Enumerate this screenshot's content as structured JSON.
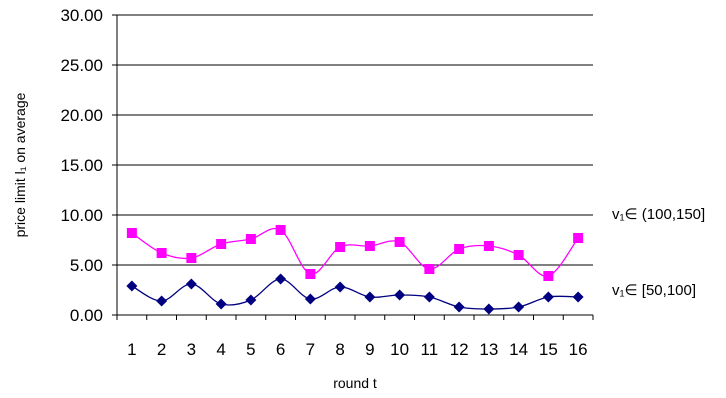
{
  "chart_data": {
    "type": "line",
    "title": "",
    "xlabel": "round t",
    "ylabel": "price limit l₁ on average",
    "ylim": [
      0,
      30
    ],
    "yticks": [
      "0.00",
      "5.00",
      "10.00",
      "15.00",
      "20.00",
      "25.00",
      "30.00"
    ],
    "categories": [
      "1",
      "2",
      "3",
      "4",
      "5",
      "6",
      "7",
      "8",
      "9",
      "10",
      "11",
      "12",
      "13",
      "14",
      "15",
      "16"
    ],
    "grid": "horizontal",
    "legend": "none",
    "series": [
      {
        "name": "v₁∈ (100,150]",
        "color": "#FF00FF",
        "marker": "square",
        "values": [
          8.2,
          6.2,
          5.7,
          7.1,
          7.6,
          8.5,
          4.1,
          6.8,
          6.9,
          7.3,
          4.6,
          6.6,
          6.9,
          6.0,
          3.9,
          7.7
        ]
      },
      {
        "name": "v₁∈ [50,100]",
        "color": "#000080",
        "marker": "diamond",
        "values": [
          2.9,
          1.4,
          3.1,
          1.1,
          1.5,
          3.6,
          1.6,
          2.8,
          1.8,
          2.0,
          1.8,
          0.8,
          0.6,
          0.8,
          1.8,
          1.8
        ]
      }
    ]
  }
}
